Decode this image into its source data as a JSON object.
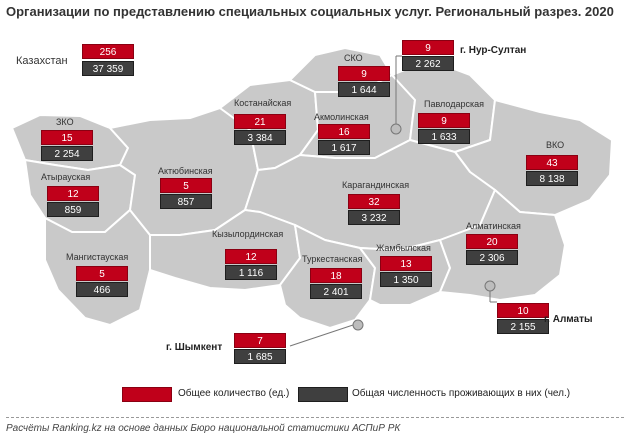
{
  "title": "Организации по представлению специальных социальных услуг. Региональный разрез. 2020",
  "colors": {
    "count": "#c0001a",
    "residents": "#3f3f3f",
    "map_fill": "#c9c9c9",
    "map_stroke": "#ffffff"
  },
  "kazakhstan": {
    "label": "Казахстан",
    "count": "256",
    "residents": "37 359"
  },
  "regions": [
    {
      "id": "zko",
      "label": "ЗКО",
      "count": "15",
      "residents": "2 254"
    },
    {
      "id": "atyrau",
      "label": "Атырауская",
      "count": "12",
      "residents": "859"
    },
    {
      "id": "mangystau",
      "label": "Мангистауская",
      "count": "5",
      "residents": "466"
    },
    {
      "id": "aktobe",
      "label": "Актюбинская",
      "count": "5",
      "residents": "857"
    },
    {
      "id": "kostanay",
      "label": "Костанайская",
      "count": "21",
      "residents": "3 384"
    },
    {
      "id": "sko",
      "label": "СКО",
      "count": "9",
      "residents": "1 644"
    },
    {
      "id": "akmola",
      "label": "Акмолинская",
      "count": "16",
      "residents": "1 617"
    },
    {
      "id": "pavlodar",
      "label": "Павлодарская",
      "count": "9",
      "residents": "1 633"
    },
    {
      "id": "vko",
      "label": "ВКО",
      "count": "43",
      "residents": "8 138"
    },
    {
      "id": "karaganda",
      "label": "Карагандинская",
      "count": "32",
      "residents": "3 232"
    },
    {
      "id": "kyzylorda",
      "label": "Кызылординская",
      "count": "12",
      "residents": "1 116"
    },
    {
      "id": "turkestan",
      "label": "Туркестанская",
      "count": "18",
      "residents": "2 401"
    },
    {
      "id": "zhambyl",
      "label": "Жамбылская",
      "count": "13",
      "residents": "1 350"
    },
    {
      "id": "almaty_reg",
      "label": "Алматинская",
      "count": "20",
      "residents": "2 306"
    }
  ],
  "cities": [
    {
      "id": "nur_sultan",
      "label": "г. Нур-Султан",
      "count": "9",
      "residents": "2 262"
    },
    {
      "id": "almaty_city",
      "label": "г. Алматы",
      "count": "10",
      "residents": "2 155"
    },
    {
      "id": "shymkent",
      "label": "г. Шымкент",
      "count": "7",
      "residents": "1 685"
    }
  ],
  "legend": {
    "count_label": "Общее количество (ед.)",
    "residents_label": "Общая численность проживающих в них (чел.)"
  },
  "footer": "Расчёты Ranking.kz на основе данных Бюро национальной статистики АСПиР РК"
}
